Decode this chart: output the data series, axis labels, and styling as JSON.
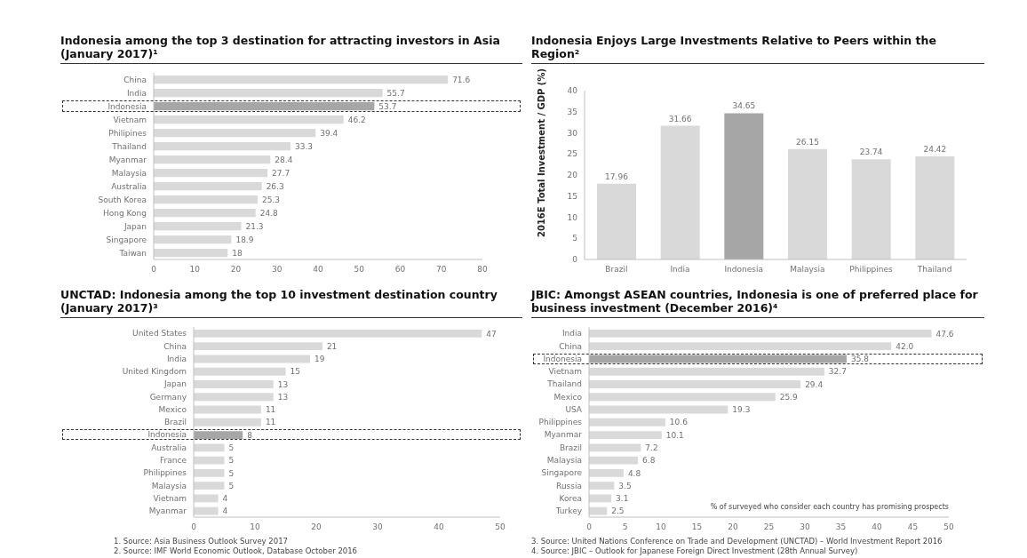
{
  "chart_data": [
    {
      "type": "bar",
      "orientation": "horizontal",
      "title": "Indonesia among the top 3 destination for attracting investors in Asia (January 2017)¹",
      "categories": [
        "China",
        "India",
        "Indonesia",
        "Vietnam",
        "Philipines",
        "Thailand",
        "Myanmar",
        "Malaysia",
        "Australia",
        "South Korea",
        "Hong Kong",
        "Japan",
        "Singapore",
        "Taiwan"
      ],
      "values": [
        71.6,
        55.7,
        53.7,
        46.2,
        39.4,
        33.3,
        28.4,
        27.7,
        26.3,
        25.3,
        24.8,
        21.3,
        18.9,
        18
      ],
      "colors": [
        "#d9d9d9",
        "#d9d9d9",
        "#a6a6a6",
        "#d9d9d9",
        "#d9d9d9",
        "#d9d9d9",
        "#d9d9d9",
        "#d9d9d9",
        "#d9d9d9",
        "#d9d9d9",
        "#d9d9d9",
        "#d9d9d9",
        "#d9d9d9",
        "#d9d9d9"
      ],
      "xlim": [
        0,
        80
      ],
      "xticks": [
        0,
        10,
        20,
        30,
        40,
        50,
        60,
        70,
        80
      ],
      "data_labels": true,
      "grid": false,
      "legend": false
    },
    {
      "type": "bar",
      "title": "Indonesia Enjoys Large Investments Relative to Peers within the Region²",
      "ylabel": "2016E Total Investment / GDP (%)",
      "categories": [
        "Brazil",
        "India",
        "Indonesia",
        "Malaysia",
        "Philippines",
        "Thailand"
      ],
      "values": [
        17.96,
        31.66,
        34.65,
        26.15,
        23.74,
        24.42
      ],
      "colors": [
        "#d9d9d9",
        "#d9d9d9",
        "#a6a6a6",
        "#d9d9d9",
        "#d9d9d9",
        "#d9d9d9"
      ],
      "ylim": [
        0,
        40
      ],
      "yticks": [
        0,
        5,
        10,
        15,
        20,
        25,
        30,
        35,
        40
      ],
      "data_labels": true,
      "grid": false,
      "legend": false
    },
    {
      "type": "bar",
      "orientation": "horizontal",
      "title": "UNCTAD: Indonesia among the top 10 investment destination country (January 2017)³",
      "categories": [
        "United States",
        "China",
        "India",
        "United Kingdom",
        "Japan",
        "Germany",
        "Mexico",
        "Brazil",
        "Indonesia",
        "Australia",
        "France",
        "Philippines",
        "Malaysia",
        "Vietnam",
        "Myanmar"
      ],
      "values": [
        47,
        21,
        19,
        15,
        13,
        13,
        11,
        11,
        8,
        5,
        5,
        5,
        5,
        4,
        4
      ],
      "colors": [
        "#d9d9d9",
        "#d9d9d9",
        "#d9d9d9",
        "#d9d9d9",
        "#d9d9d9",
        "#d9d9d9",
        "#d9d9d9",
        "#d9d9d9",
        "#a6a6a6",
        "#d9d9d9",
        "#d9d9d9",
        "#d9d9d9",
        "#d9d9d9",
        "#d9d9d9",
        "#d9d9d9"
      ],
      "xlim": [
        0,
        50
      ],
      "xticks": [
        0,
        10,
        20,
        30,
        40,
        50
      ],
      "data_labels": true,
      "grid": false,
      "legend": false,
      "annotations": [
        "1.   Source: Asia Business Outlook Survey 2017",
        "2.   Source: IMF World Economic Outlook, Database October 2016"
      ]
    },
    {
      "type": "bar",
      "orientation": "horizontal",
      "title": "JBIC: Amongst ASEAN countries, Indonesia is one of preferred place for business investment (December 2016)⁴",
      "xlabel": "% of surveyed who consider each country has promising prospects",
      "categories": [
        "India",
        "China",
        "Indonesia",
        "Vietnam",
        "Thailand",
        "Mexico",
        "USA",
        "Philippines",
        "Myanmar",
        "Brazil",
        "Malaysia",
        "Singapore",
        "Russia",
        "Korea",
        "Turkey"
      ],
      "values": [
        47.6,
        42.0,
        35.8,
        32.7,
        29.4,
        25.9,
        19.3,
        10.6,
        10.1,
        7.2,
        6.8,
        4.8,
        3.5,
        3.1,
        2.5
      ],
      "value_labels": [
        "47.6",
        "42.0",
        "35.8",
        "32.7",
        "29.4",
        "25.9",
        "19.3",
        "10.6",
        "10.1",
        "7.2",
        "6.8",
        "4.8",
        "3.5",
        "3.1",
        "2.5"
      ],
      "colors": [
        "#d9d9d9",
        "#d9d9d9",
        "#a6a6a6",
        "#d9d9d9",
        "#d9d9d9",
        "#d9d9d9",
        "#d9d9d9",
        "#d9d9d9",
        "#d9d9d9",
        "#d9d9d9",
        "#d9d9d9",
        "#d9d9d9",
        "#d9d9d9",
        "#d9d9d9",
        "#d9d9d9"
      ],
      "xlim": [
        0,
        50
      ],
      "xticks": [
        0,
        5,
        10,
        15,
        20,
        25,
        30,
        35,
        40,
        45,
        50
      ],
      "grid": false,
      "legend": false,
      "annotations": [
        "3.   Source: United Nations Conference on Trade and Development (UNCTAD) – World Investment Report 2016",
        "4.   Source: JBIC – Outlook for Japanese Foreign Direct Investment (28th Annual Survey)"
      ]
    }
  ]
}
